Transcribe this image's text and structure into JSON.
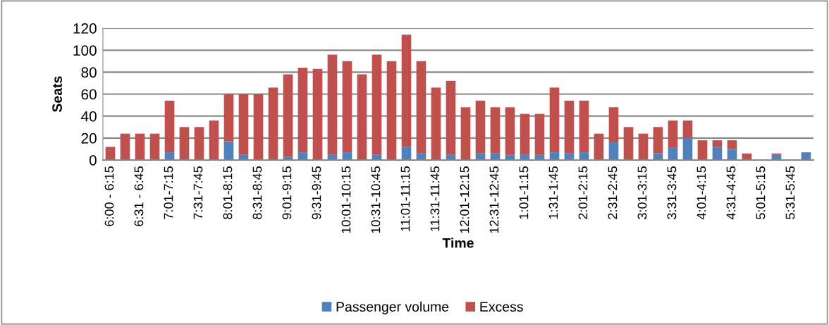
{
  "chart_data": {
    "type": "bar",
    "stacked": true,
    "xlabel": "Time",
    "ylabel": "Seats",
    "ylim": [
      0,
      120
    ],
    "yticks": [
      0,
      20,
      40,
      60,
      80,
      100,
      120
    ],
    "grid": "y",
    "legend": "bottom",
    "categories": [
      "6:00 - 6:15",
      null,
      "6:31 - 6:45",
      null,
      "7:01-7:15",
      null,
      "7:31-7:45",
      null,
      "8:01-8:15",
      null,
      "8:31-8:45",
      null,
      "9:01-9:15",
      null,
      "9:31-9:45",
      null,
      "10:01-10:15",
      null,
      "10:31-10:45",
      null,
      "11:01-11:15",
      null,
      "11:31-11:45",
      null,
      "12:01-12:15",
      null,
      "12:31-12:45",
      null,
      "1:01-1:15",
      null,
      "1:31-1:45",
      null,
      "2:01-2:15",
      null,
      "2:31-2:45",
      null,
      "3:01-3:15",
      null,
      "3:31-3:45",
      null,
      "4:01-4:15",
      null,
      "4:31-4:45",
      null,
      "5:01-5:15",
      null,
      "5:31-5:45",
      null
    ],
    "series": [
      {
        "name": "Passenger volume",
        "color": "#4f81bd",
        "values": [
          0,
          0,
          0,
          0,
          7,
          0,
          0,
          0,
          17,
          5,
          0,
          0,
          3,
          7,
          0,
          5,
          7,
          0,
          5,
          0,
          12,
          6,
          0,
          5,
          0,
          6,
          6,
          5,
          5,
          5,
          7,
          6,
          7,
          0,
          16,
          0,
          0,
          6,
          11,
          20,
          0,
          12,
          10,
          0,
          0,
          5,
          0,
          7
        ]
      },
      {
        "name": "Excess",
        "color": "#c0504d",
        "values": [
          12,
          24,
          24,
          24,
          47,
          30,
          30,
          36,
          43,
          55,
          60,
          66,
          75,
          77,
          83,
          91,
          83,
          78,
          91,
          90,
          102,
          84,
          66,
          67,
          48,
          48,
          42,
          43,
          37,
          37,
          59,
          48,
          47,
          24,
          32,
          30,
          24,
          24,
          25,
          16,
          18,
          6,
          8,
          6,
          0,
          1,
          0,
          0
        ]
      }
    ]
  }
}
